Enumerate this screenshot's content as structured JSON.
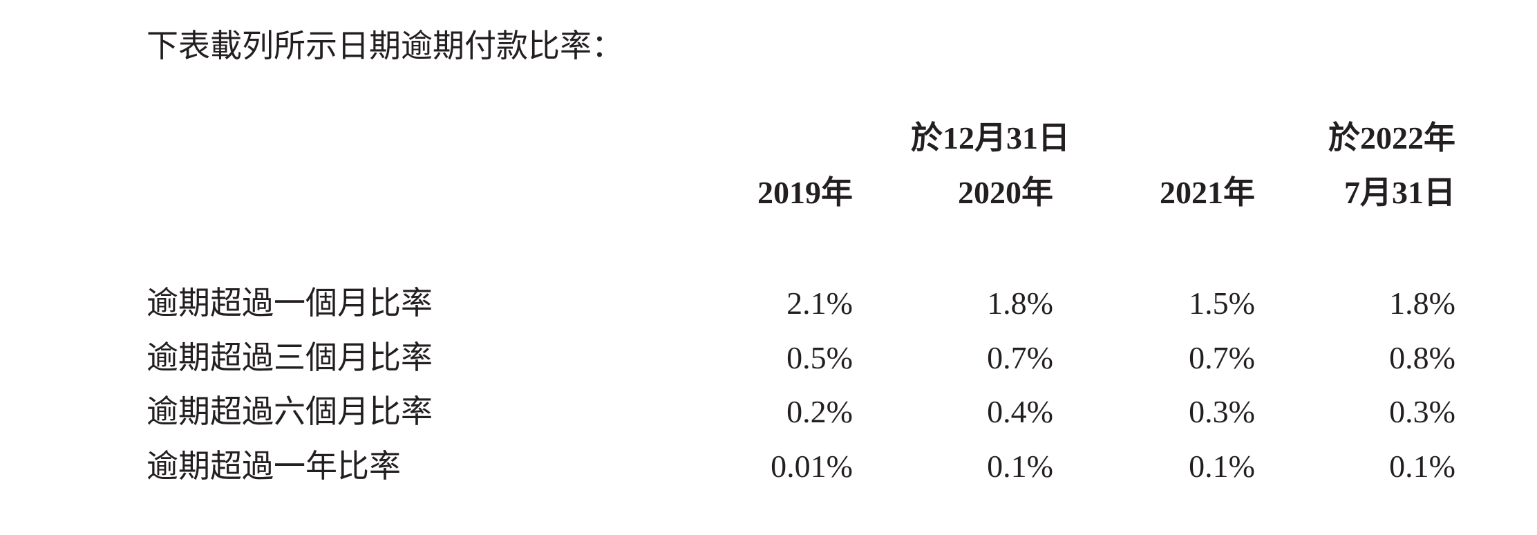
{
  "intro": "下表載列所示日期逾期付款比率：",
  "table": {
    "header_groups": [
      "於12月31日",
      "於2022年"
    ],
    "columns": [
      "2019年",
      "2020年",
      "2021年",
      "7月31日"
    ],
    "rows": [
      [
        "逾期超過一個月比率",
        "2.1%",
        "1.8%",
        "1.5%",
        "1.8%"
      ],
      [
        "逾期超過三個月比率",
        "0.5%",
        "0.7%",
        "0.7%",
        "0.8%"
      ],
      [
        "逾期超過六個月比率",
        "0.2%",
        "0.4%",
        "0.3%",
        "0.3%"
      ],
      [
        "逾期超過一年比率",
        "0.01%",
        "0.1%",
        "0.1%",
        "0.1%"
      ]
    ]
  }
}
